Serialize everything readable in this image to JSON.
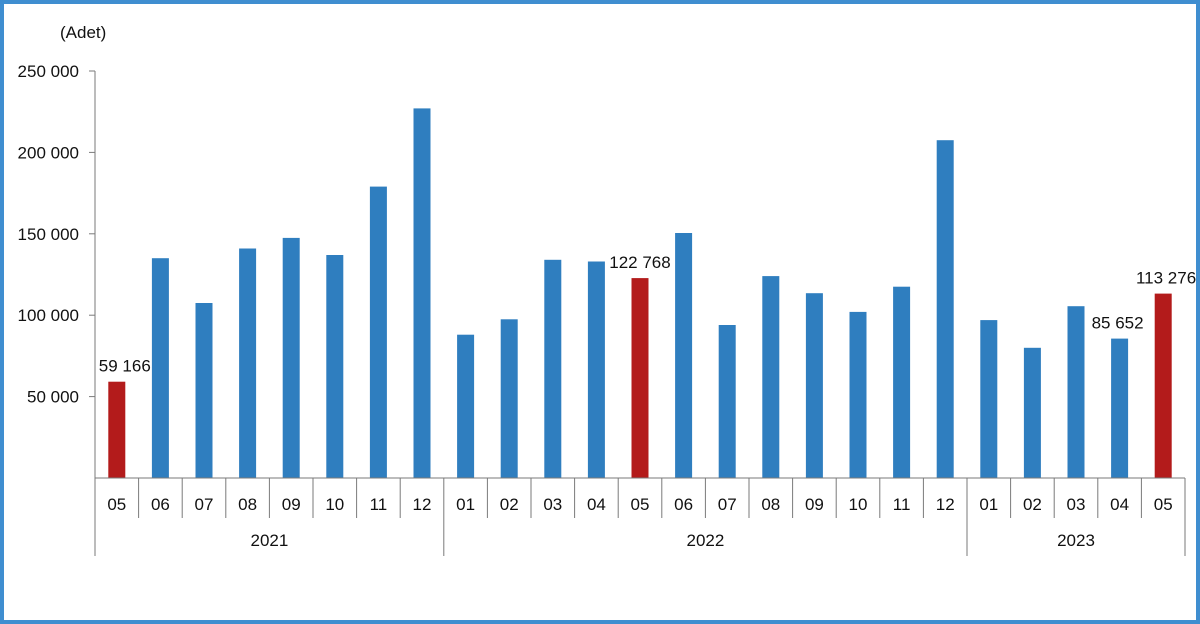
{
  "chart_data": {
    "type": "bar",
    "unit_label": "(Adet)",
    "ylim": [
      0,
      250000
    ],
    "yticks": [
      "250 000",
      "200 000",
      "150 000",
      "100 000",
      "50 000"
    ],
    "ytick_values": [
      250000,
      200000,
      150000,
      100000,
      50000
    ],
    "grid": false,
    "legend": "none",
    "categories": [
      "05",
      "06",
      "07",
      "08",
      "09",
      "10",
      "11",
      "12",
      "01",
      "02",
      "03",
      "04",
      "05",
      "06",
      "07",
      "08",
      "09",
      "10",
      "11",
      "12",
      "01",
      "02",
      "03",
      "04",
      "05"
    ],
    "years": [
      {
        "label": "2021",
        "count": 8
      },
      {
        "label": "2022",
        "count": 12
      },
      {
        "label": "2023",
        "count": 5
      }
    ],
    "values": [
      59166,
      135000,
      107500,
      141000,
      147500,
      137000,
      179000,
      227000,
      88000,
      97500,
      134000,
      133000,
      122768,
      150500,
      94000,
      124000,
      113500,
      102000,
      117500,
      207500,
      97000,
      80000,
      105500,
      85652,
      113276
    ],
    "highlight": [
      true,
      false,
      false,
      false,
      false,
      false,
      false,
      false,
      false,
      false,
      false,
      false,
      true,
      false,
      false,
      false,
      false,
      false,
      false,
      false,
      false,
      false,
      false,
      false,
      true
    ],
    "data_labels": [
      {
        "index": 0,
        "text": "59 166"
      },
      {
        "index": 12,
        "text": "122 768"
      },
      {
        "index": 23,
        "text": "85 652"
      },
      {
        "index": 24,
        "text": "113 276"
      }
    ],
    "colors": {
      "bar": "#2f7ebf",
      "highlight": "#b31b1b",
      "axis": "#7a7a7a"
    }
  }
}
